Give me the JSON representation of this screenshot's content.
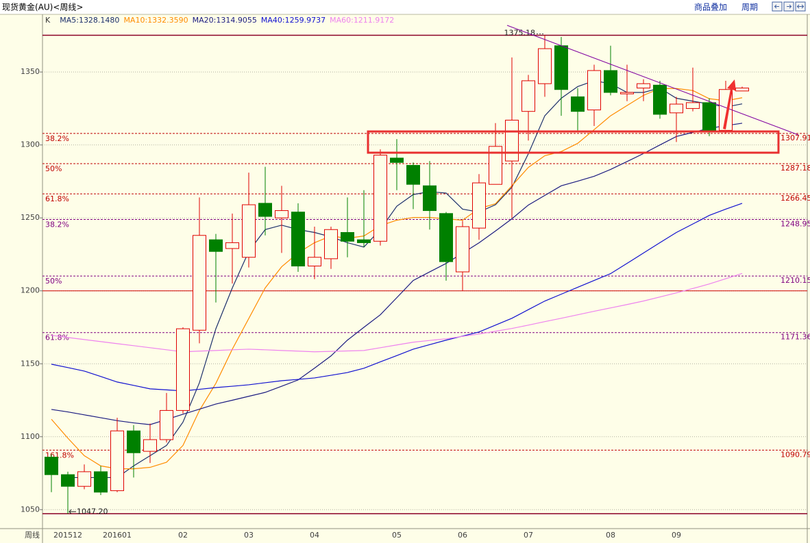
{
  "chart_data": {
    "type": "candlestick",
    "title": "现货黄金(AU)<周线>",
    "toolbar": [
      "商品叠加",
      "周期"
    ],
    "candle_label": "K",
    "x_axis_label": "周线",
    "categories": [
      null,
      "201512",
      null,
      null,
      "201601",
      null,
      null,
      null,
      "02",
      null,
      null,
      null,
      "03",
      null,
      null,
      null,
      "04",
      null,
      null,
      null,
      null,
      "05",
      null,
      null,
      null,
      "06",
      null,
      null,
      null,
      "07",
      null,
      null,
      null,
      null,
      "08",
      null,
      null,
      null,
      "09",
      null,
      null,
      null,
      null
    ],
    "open": [
      1086,
      1074,
      1066,
      1076,
      1063,
      1104,
      1090,
      1098,
      1118,
      1173,
      1235,
      1229,
      1223,
      1260,
      1250,
      1254,
      1217,
      1222,
      1240,
      1235,
      1234,
      1291,
      1286,
      1272,
      1253,
      1213,
      1243,
      1273,
      1289,
      1323,
      1342,
      1368,
      1333,
      1324,
      1351,
      1335,
      1339,
      1341,
      1322,
      1325,
      1329,
      1310,
      1337
    ],
    "high": [
      1088,
      1076,
      1081,
      1080,
      1113,
      1108,
      1109,
      1130,
      1175,
      1264,
      1239,
      1253,
      1281,
      1285,
      1272,
      1260,
      1244,
      1244,
      1264,
      1269,
      1297,
      1304,
      1288,
      1289,
      1254,
      1248,
      1280,
      1315,
      1360,
      1348,
      1375.18,
      1374,
      1339,
      1355,
      1368,
      1355,
      1345,
      1344,
      1333,
      1353,
      1332,
      1344,
      1340
    ],
    "low": [
      1062,
      1047.2,
      1064,
      1060,
      1062,
      1072,
      1082,
      1096,
      1116,
      1164,
      1192,
      1205,
      1216,
      1238,
      1226,
      1213,
      1208,
      1215,
      1223,
      1230,
      1231,
      1269,
      1256,
      1242,
      1207,
      1200,
      1235,
      1273,
      1250,
      1303,
      1333,
      1320,
      1310,
      1313,
      1334,
      1330,
      1330,
      1318,
      1302,
      1323,
      1306,
      1308,
      1337
    ],
    "close": [
      1074,
      1066,
      1076,
      1062,
      1104,
      1089,
      1098,
      1118,
      1174,
      1238,
      1227,
      1233,
      1259,
      1251,
      1255,
      1217,
      1223,
      1242,
      1234,
      1233,
      1293,
      1288,
      1273,
      1255,
      1220,
      1244,
      1274,
      1299,
      1317,
      1344,
      1366,
      1338,
      1323,
      1351,
      1336,
      1336,
      1342,
      1321,
      1328,
      1329,
      1310,
      1338,
      1339
    ],
    "up_color": "#e00000",
    "down_color": "#008000",
    "lines": [
      {
        "label": "MA5:1328.1480",
        "color": "#1c2f6b",
        "values": [
          null,
          1072,
          1072,
          1072,
          1072,
          1080,
          1087,
          1094,
          1110,
          1137,
          1174,
          1202,
          1227,
          1242,
          1245,
          1242,
          1240,
          1237,
          1233,
          1230,
          1242,
          1258,
          1266,
          1268,
          1267,
          1256,
          1254,
          1259,
          1271,
          1294,
          1320,
          1332,
          1340,
          1344,
          1342,
          1336,
          1336,
          1339,
          1332,
          1330,
          1328,
          1326,
          1328.148
        ]
      },
      {
        "label": "MA10:1332.3590",
        "color": "#ff8c00",
        "values": [
          1112,
          1099,
          1087,
          1080,
          1078,
          1078,
          1079,
          1082.5,
          1094,
          1118,
          1136.6,
          1160,
          1181,
          1202,
          1216.5,
          1226,
          1233,
          1237.6,
          1236,
          1237.6,
          1244.7,
          1248.4,
          1250.3,
          1250.3,
          1249.4,
          1248.4,
          1256.4,
          1259.7,
          1272,
          1284.6,
          1292.6,
          1295.5,
          1301.1,
          1310.5,
          1320,
          1327,
          1334,
          1338.7,
          1338.7,
          1337.3,
          1331.7,
          1330.3,
          1332.359
        ]
      },
      {
        "label": "MA20:1314.9055",
        "color": "#1a1a80",
        "values": [
          1118.7,
          1117,
          1115,
          1113,
          1111,
          1109.5,
          1108.3,
          1111.8,
          1115.4,
          1118.9,
          1122.4,
          1125,
          1127.7,
          1130.4,
          1134.6,
          1138.9,
          1147,
          1155.4,
          1166.2,
          1175,
          1183.6,
          1195.3,
          1207.1,
          1213,
          1218.8,
          1225.8,
          1232.9,
          1241,
          1249.4,
          1258.8,
          1265.4,
          1272,
          1275.2,
          1278.5,
          1283.2,
          1288.6,
          1294.1,
          1300,
          1305.8,
          1308.6,
          1311.4,
          1313.2,
          1314.9055
        ]
      },
      {
        "label": "MA40:1259.9737",
        "color": "#1010d0",
        "values": [
          1149.7,
          1147.4,
          1145,
          1141.3,
          1137.5,
          1135.2,
          1132.8,
          1132.1,
          1131.4,
          1132.5,
          1133.7,
          1134.6,
          1135.6,
          1137,
          1138.4,
          1139.3,
          1140.3,
          1142.1,
          1144,
          1146.9,
          1151.3,
          1155.6,
          1160,
          1163.1,
          1166.2,
          1169,
          1171.8,
          1176.5,
          1181.2,
          1187.1,
          1193,
          1197.7,
          1202.4,
          1207.1,
          1211.8,
          1218.8,
          1225.9,
          1233,
          1240,
          1245.8,
          1251.7,
          1256,
          1259.9737
        ]
      },
      {
        "label": "MA60:1211.9172",
        "color": "#ee82ee",
        "values": [
          1169.5,
          1168,
          1166.6,
          1165.2,
          1163.8,
          1162.4,
          1161,
          1159.6,
          1158.2,
          1158.7,
          1159.1,
          1159.6,
          1160,
          1159.6,
          1159.1,
          1158.7,
          1158.2,
          1158.5,
          1158.8,
          1159.1,
          1161,
          1162.9,
          1164.8,
          1166,
          1167.1,
          1168.8,
          1170.4,
          1172.3,
          1174.2,
          1176.5,
          1178.9,
          1181.2,
          1183.6,
          1186,
          1188.3,
          1190.6,
          1193,
          1195.8,
          1198.6,
          1201.6,
          1204.7,
          1208.3,
          1211.9172
        ]
      }
    ],
    "ylim": [
      1037,
      1389.5
    ],
    "yticks": [
      1050,
      1100,
      1150,
      1200,
      1250,
      1300,
      1350
    ],
    "grid": true,
    "fib_levels": [
      {
        "label": "38.2%",
        "value": 1307.91,
        "color": "#c00000"
      },
      {
        "label": "50%",
        "value": 1287.18,
        "color": "#c00000"
      },
      {
        "label": "61.8%",
        "value": 1266.45,
        "color": "#c00000"
      },
      {
        "label": "38.2%",
        "value": 1248.95,
        "color": "#800080"
      },
      {
        "label": "50%",
        "value": 1210.15,
        "color": "#800080"
      },
      {
        "label": "61.8%",
        "value": 1171.36,
        "color": "#800080"
      },
      {
        "label": "161.8%",
        "value": 1090.79,
        "color": "#c00000"
      }
    ],
    "reference_lines": [
      {
        "value": 1200,
        "color": "#d00000"
      }
    ],
    "extremes": [
      {
        "value": 1375.18,
        "label": "1375.18"
      },
      {
        "value": 1047.2,
        "label": "1047.20"
      }
    ],
    "extreme_color": "#8b0026"
  }
}
